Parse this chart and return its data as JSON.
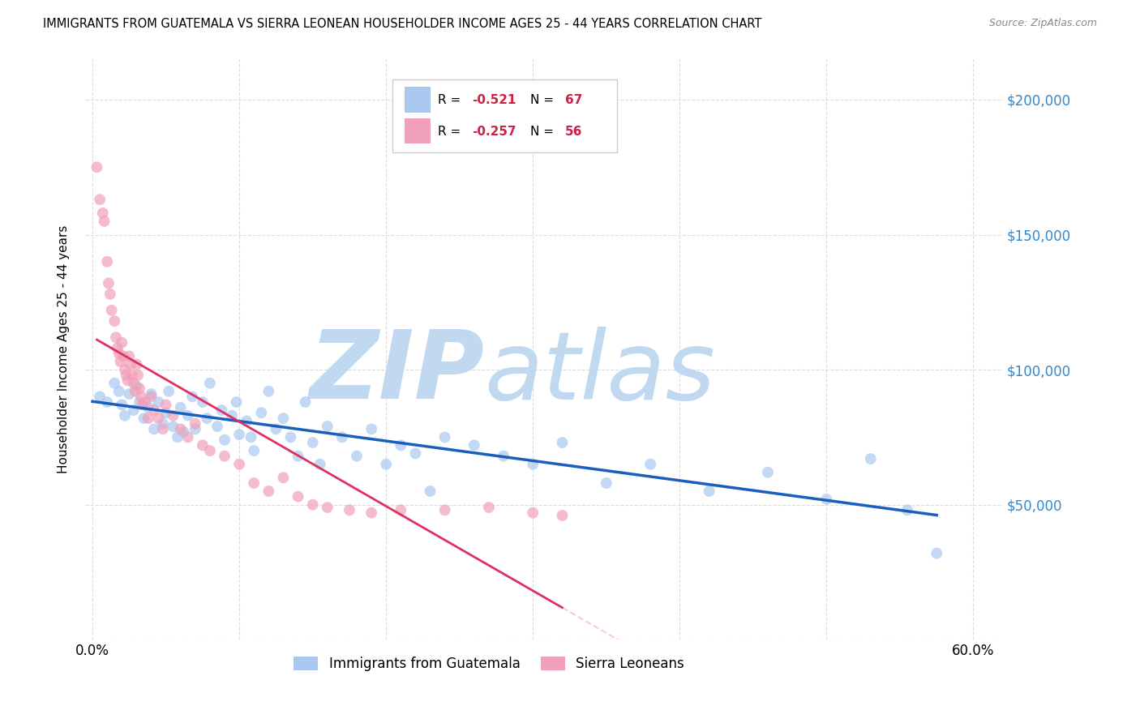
{
  "title": "IMMIGRANTS FROM GUATEMALA VS SIERRA LEONEAN HOUSEHOLDER INCOME AGES 25 - 44 YEARS CORRELATION CHART",
  "source": "Source: ZipAtlas.com",
  "ylabel": "Householder Income Ages 25 - 44 years",
  "xlim": [
    -0.005,
    0.62
  ],
  "ylim": [
    0,
    215000
  ],
  "yticks": [
    0,
    50000,
    100000,
    150000,
    200000
  ],
  "ytick_labels": [
    "",
    "$50,000",
    "$100,000",
    "$150,000",
    "$200,000"
  ],
  "xticks": [
    0.0,
    0.1,
    0.2,
    0.3,
    0.4,
    0.5,
    0.6
  ],
  "xtick_labels": [
    "0.0%",
    "",
    "",
    "",
    "",
    "",
    "60.0%"
  ],
  "blue_color": "#a8c8f0",
  "pink_color": "#f0a0b8",
  "blue_line_color": "#1a5fbd",
  "pink_line_color": "#e03060",
  "pink_line_ext_color": "#f0b8c8",
  "watermark_color": "#c0d8f0",
  "background_color": "#ffffff",
  "grid_color": "#dddddd",
  "right_tick_color": "#3388cc",
  "blue_scatter_x": [
    0.005,
    0.01,
    0.015,
    0.018,
    0.02,
    0.022,
    0.025,
    0.028,
    0.03,
    0.032,
    0.035,
    0.038,
    0.04,
    0.042,
    0.045,
    0.048,
    0.05,
    0.052,
    0.055,
    0.058,
    0.06,
    0.062,
    0.065,
    0.068,
    0.07,
    0.075,
    0.078,
    0.08,
    0.085,
    0.088,
    0.09,
    0.095,
    0.098,
    0.1,
    0.105,
    0.108,
    0.11,
    0.115,
    0.12,
    0.125,
    0.13,
    0.135,
    0.14,
    0.145,
    0.15,
    0.155,
    0.16,
    0.17,
    0.18,
    0.19,
    0.2,
    0.21,
    0.22,
    0.23,
    0.24,
    0.26,
    0.28,
    0.3,
    0.32,
    0.35,
    0.38,
    0.42,
    0.46,
    0.5,
    0.53,
    0.555,
    0.575
  ],
  "blue_scatter_y": [
    90000,
    88000,
    95000,
    92000,
    87000,
    83000,
    91000,
    85000,
    94000,
    88000,
    82000,
    86000,
    91000,
    78000,
    88000,
    80000,
    84000,
    92000,
    79000,
    75000,
    86000,
    77000,
    83000,
    90000,
    78000,
    88000,
    82000,
    95000,
    79000,
    85000,
    74000,
    83000,
    88000,
    76000,
    81000,
    75000,
    70000,
    84000,
    92000,
    78000,
    82000,
    75000,
    68000,
    88000,
    73000,
    65000,
    79000,
    75000,
    68000,
    78000,
    65000,
    72000,
    69000,
    55000,
    75000,
    72000,
    68000,
    65000,
    73000,
    58000,
    65000,
    55000,
    62000,
    52000,
    67000,
    48000,
    32000
  ],
  "pink_scatter_x": [
    0.003,
    0.005,
    0.007,
    0.008,
    0.01,
    0.011,
    0.012,
    0.013,
    0.015,
    0.016,
    0.017,
    0.018,
    0.019,
    0.02,
    0.021,
    0.022,
    0.023,
    0.024,
    0.025,
    0.026,
    0.027,
    0.028,
    0.029,
    0.03,
    0.031,
    0.032,
    0.033,
    0.034,
    0.036,
    0.038,
    0.04,
    0.042,
    0.045,
    0.048,
    0.05,
    0.055,
    0.06,
    0.065,
    0.07,
    0.075,
    0.08,
    0.09,
    0.1,
    0.11,
    0.12,
    0.13,
    0.14,
    0.15,
    0.16,
    0.175,
    0.19,
    0.21,
    0.24,
    0.27,
    0.3,
    0.32
  ],
  "pink_scatter_y": [
    175000,
    163000,
    158000,
    155000,
    140000,
    132000,
    128000,
    122000,
    118000,
    112000,
    108000,
    106000,
    103000,
    110000,
    105000,
    100000,
    98000,
    96000,
    105000,
    102000,
    98000,
    95000,
    92000,
    102000,
    98000,
    93000,
    90000,
    87000,
    88000,
    82000,
    90000,
    85000,
    82000,
    78000,
    87000,
    83000,
    78000,
    75000,
    80000,
    72000,
    70000,
    68000,
    65000,
    58000,
    55000,
    60000,
    53000,
    50000,
    49000,
    48000,
    47000,
    48000,
    48000,
    49000,
    47000,
    46000
  ]
}
